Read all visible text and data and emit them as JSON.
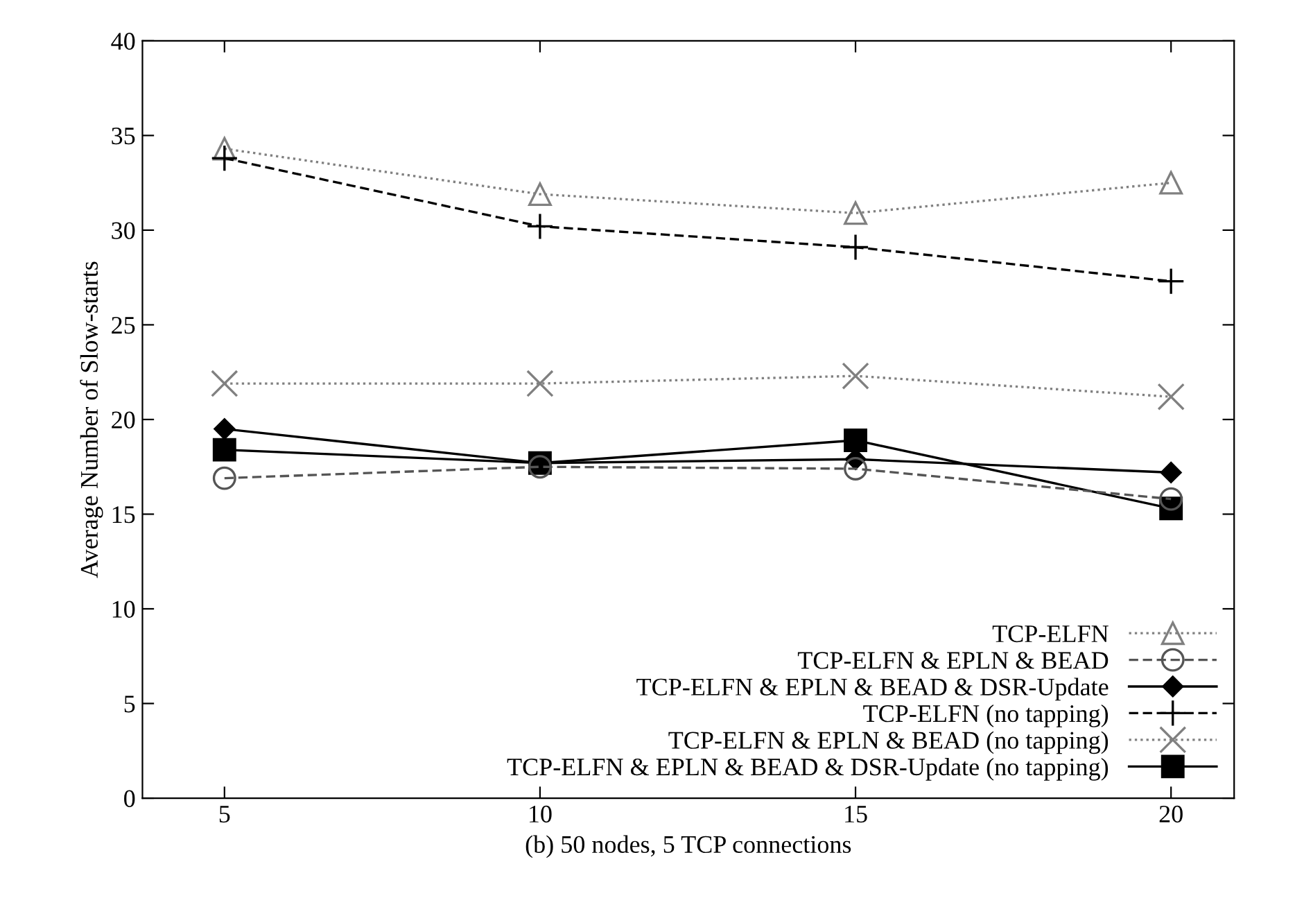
{
  "chart_data": {
    "type": "line",
    "xlabel": "(b) 50 nodes, 5 TCP connections",
    "ylabel": "Average Number of Slow-starts",
    "x": [
      5,
      10,
      15,
      20
    ],
    "xlim": [
      3.7,
      21
    ],
    "xticks": [
      5,
      10,
      15,
      20
    ],
    "ylim": [
      0,
      40
    ],
    "yticks": [
      0,
      5,
      10,
      15,
      20,
      25,
      30,
      35,
      40
    ],
    "grid": false,
    "legend": "bottom right",
    "series": [
      {
        "name": "TCP-ELFN",
        "color": "#808080",
        "marker": "triangle",
        "line_style": "dotted",
        "values": [
          34.3,
          31.9,
          30.9,
          32.5
        ]
      },
      {
        "name": "TCP-ELFN & EPLN & BEAD",
        "color": "#555555",
        "marker": "circle",
        "line_style": "dashed",
        "values": [
          16.9,
          17.5,
          17.4,
          15.8
        ]
      },
      {
        "name": "TCP-ELFN & EPLN & BEAD & DSR-Update",
        "color": "#000000",
        "marker": "diamond",
        "line_style": "solid",
        "values": [
          19.5,
          17.7,
          17.9,
          17.2
        ]
      },
      {
        "name": "TCP-ELFN (no tapping)",
        "color": "#000000",
        "marker": "cross",
        "line_style": "dashed",
        "values": [
          33.8,
          30.2,
          29.1,
          27.3
        ]
      },
      {
        "name": "TCP-ELFN & EPLN & BEAD (no tapping)",
        "color": "#808080",
        "marker": "cross",
        "line_style": "dotted",
        "values": [
          21.9,
          21.9,
          22.3,
          21.2
        ]
      },
      {
        "name": "TCP-ELFN & EPLN & BEAD & DSR-Update (no tapping)",
        "color": "#000000",
        "marker": "square",
        "line_style": "solid",
        "values": [
          18.4,
          17.7,
          18.9,
          15.3
        ]
      }
    ]
  }
}
